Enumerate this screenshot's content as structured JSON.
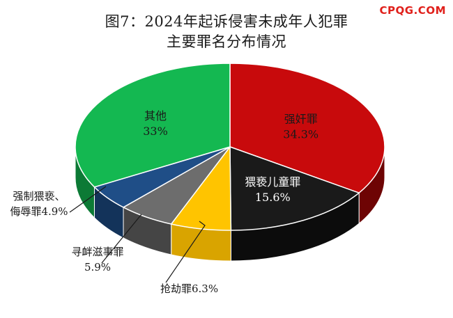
{
  "watermark": "CPQG.COM",
  "chart_data": {
    "type": "pie",
    "title": "图7：2024年起诉侵害未成年人犯罪",
    "subtitle": "主要罪名分布情况",
    "unit": "%",
    "slices": [
      {
        "name": "强奸罪",
        "value": 34.3,
        "value_label": "34.3%",
        "color": "#c80a0c",
        "side_color": "#6e0404",
        "label_color": "#1a1a1a",
        "label_lines": [
          "强奸罪",
          "34.3%"
        ],
        "label_placement": "inside"
      },
      {
        "name": "猥亵儿童罪",
        "value": 15.6,
        "value_label": "15.6%",
        "color": "#1a1a1a",
        "side_color": "#0c0c0c",
        "label_color": "#ffffff",
        "label_lines": [
          "猥亵儿童罪",
          "15.6%"
        ],
        "label_placement": "inside"
      },
      {
        "name": "抢劫罪",
        "value": 6.3,
        "value_label": "6.3%",
        "color": "#ffc400",
        "side_color": "#d9a400",
        "label_color": "#1a1a1a",
        "label_lines": [
          "抢劫罪6.3%"
        ],
        "label_placement": "outside"
      },
      {
        "name": "寻衅滋事罪",
        "value": 5.9,
        "value_label": "5.9%",
        "color": "#6d6d6d",
        "side_color": "#454545",
        "label_color": "#1a1a1a",
        "label_lines": [
          "寻衅滋事罪",
          "5.9%"
        ],
        "label_placement": "outside"
      },
      {
        "name": "强制猥亵、侮辱罪",
        "value": 4.9,
        "value_label": "4.9%",
        "color": "#1f4e87",
        "side_color": "#13335a",
        "label_color": "#1a1a1a",
        "label_lines": [
          "强制猥亵、",
          "侮辱罪4.9%"
        ],
        "label_placement": "outside"
      },
      {
        "name": "其他",
        "value": 33,
        "value_label": "33%",
        "color": "#14b851",
        "side_color": "#0c7a35",
        "label_color": "#1a1a1a",
        "label_lines": [
          "其他",
          "33%"
        ],
        "label_placement": "inside"
      }
    ]
  }
}
